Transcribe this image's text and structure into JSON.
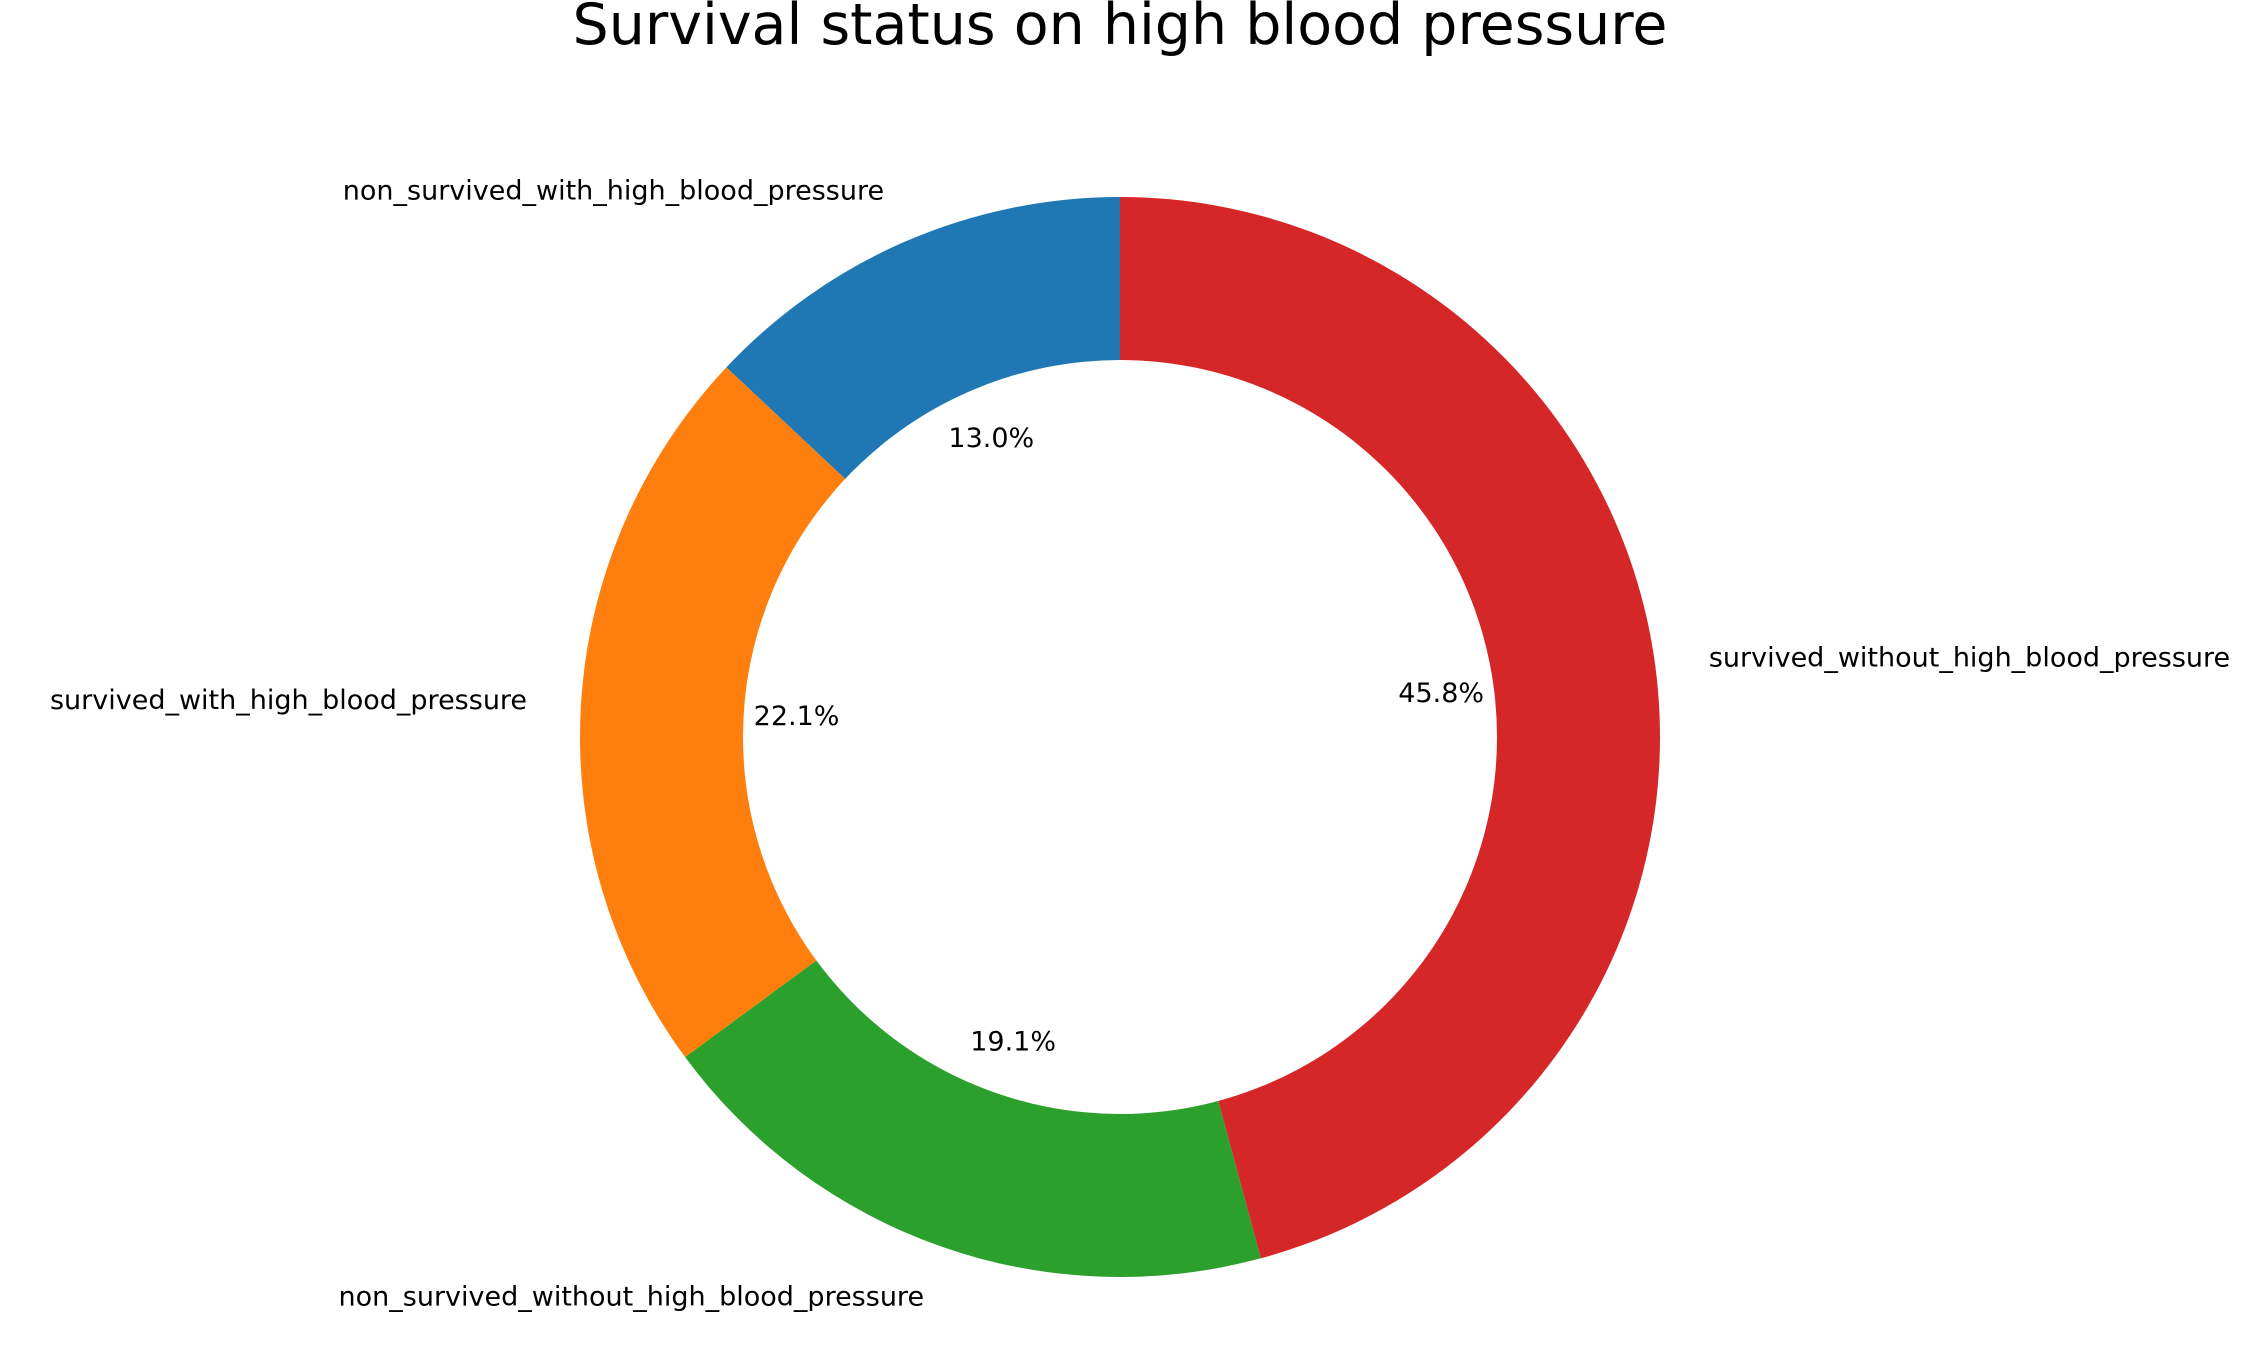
{
  "chart_data": {
    "type": "pie",
    "variant": "donut",
    "title": "Survival status on high blood pressure",
    "start_angle_deg": 90,
    "direction": "counterclockwise",
    "slices": [
      {
        "label": "non_survived_with_high_blood_pressure",
        "value": 13.0,
        "pct_label": "13.0%",
        "color": "#1f77b4"
      },
      {
        "label": "survived_with_high_blood_pressure",
        "value": 22.1,
        "pct_label": "22.1%",
        "color": "#ff7f0e"
      },
      {
        "label": "non_survived_without_high_blood_pressure",
        "value": 19.1,
        "pct_label": "19.1%",
        "color": "#2ca02c"
      },
      {
        "label": "survived_without_high_blood_pressure",
        "value": 45.8,
        "pct_label": "45.8%",
        "color": "#d62728"
      }
    ]
  }
}
